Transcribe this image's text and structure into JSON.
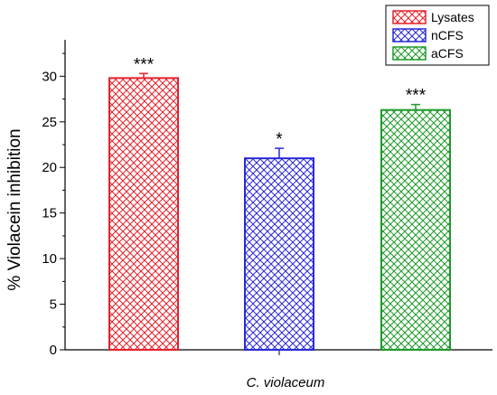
{
  "chart_data": {
    "type": "bar",
    "xlabel": "C. violaceum",
    "ylabel": "% Violacein inhibition",
    "ylim": [
      0,
      34
    ],
    "yticks": [
      0,
      5,
      10,
      15,
      20,
      25,
      30
    ],
    "grid": false,
    "legend_position": "top-right",
    "series": [
      {
        "name": "Lysates",
        "value": 29.8,
        "error": 0.5,
        "significance": "***",
        "color": "#e8202a",
        "pattern": "crosshatch"
      },
      {
        "name": "nCFS",
        "value": 21.0,
        "error": 1.1,
        "significance": "*",
        "color": "#2a2ad8",
        "pattern": "crosshatch"
      },
      {
        "name": "aCFS",
        "value": 26.3,
        "error": 0.6,
        "significance": "***",
        "color": "#1f9a2a",
        "pattern": "crosshatch"
      }
    ]
  }
}
